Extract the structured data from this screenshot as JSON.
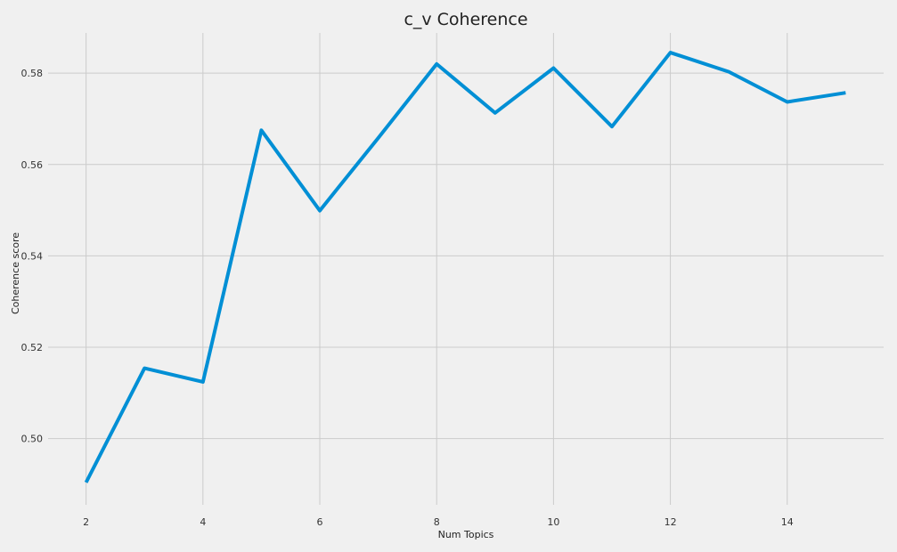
{
  "chart_data": {
    "type": "line",
    "title": "c_v Coherence",
    "xlabel": "Num Topics",
    "ylabel": "Coherence score",
    "x_ticks": [
      2,
      4,
      6,
      8,
      10,
      12,
      14
    ],
    "y_ticks": [
      0.5,
      0.52,
      0.54,
      0.56,
      0.58
    ],
    "y_tick_labels": [
      "0.50",
      "0.52",
      "0.54",
      "0.56",
      "0.58"
    ],
    "xlim": [
      1.35,
      15.65
    ],
    "ylim": [
      0.4855,
      0.5888
    ],
    "grid": true,
    "colors": {
      "background": "#f0f0f0",
      "grid": "#cbcbcb",
      "line": "#008fd5"
    },
    "series": [
      {
        "x": [
          2,
          3,
          4,
          5,
          6,
          7,
          8,
          9,
          10,
          11,
          12,
          13,
          14,
          15
        ],
        "values": [
          0.4904,
          0.5154,
          0.5124,
          0.5675,
          0.5499,
          0.5658,
          0.582,
          0.5713,
          0.5811,
          0.5683,
          0.5845,
          0.5803,
          0.5737,
          0.5757
        ]
      }
    ]
  }
}
